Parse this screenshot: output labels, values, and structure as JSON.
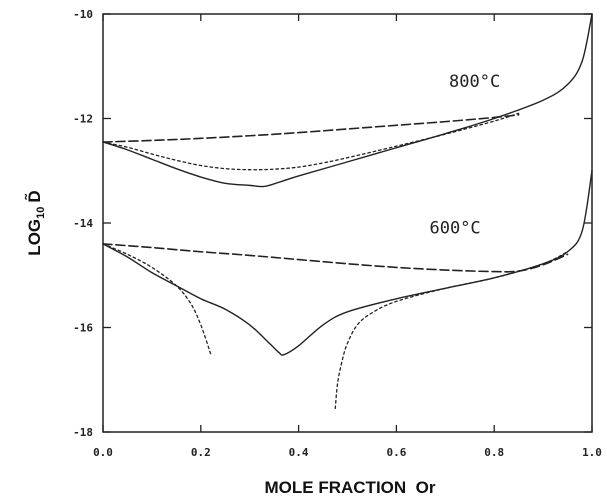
{
  "chart_data": {
    "type": "line",
    "title": "",
    "xlabel": "MOLE FRACTION  Or",
    "ylabel": "LOG",
    "ylabel_subscript": "10",
    "ylabel_symbol": "D̃",
    "xlim": [
      0.0,
      1.0
    ],
    "ylim": [
      -18,
      -10
    ],
    "xticks": [
      0.0,
      0.2,
      0.4,
      0.6,
      0.8,
      1.0
    ],
    "xtick_labels": [
      "0.0",
      "0.2",
      "0.4",
      "0.6",
      "0.8",
      "1.0"
    ],
    "yticks": [
      -18,
      -16,
      -14,
      -12,
      -10
    ],
    "ytick_labels": [
      "-18",
      "-16",
      "-14",
      "-12",
      "-10"
    ],
    "grid": false,
    "annotations": [
      {
        "text": "800°C",
        "x": 0.76,
        "y": -11.4
      },
      {
        "text": "600°C",
        "x": 0.72,
        "y": -14.2
      }
    ],
    "series": [
      {
        "style": "solid",
        "x": [
          0.0,
          0.05,
          0.1,
          0.15,
          0.2,
          0.25,
          0.3,
          0.33,
          0.36,
          0.4,
          0.5,
          0.6,
          0.7,
          0.8,
          0.9,
          0.95,
          0.98,
          1.0
        ],
        "y": [
          -12.45,
          -12.6,
          -12.78,
          -12.96,
          -13.12,
          -13.24,
          -13.28,
          -13.3,
          -13.22,
          -13.1,
          -12.83,
          -12.56,
          -12.29,
          -12.0,
          -11.65,
          -11.35,
          -10.9,
          -10.0
        ]
      },
      {
        "style": "dotted",
        "x": [
          0.0,
          0.05,
          0.1,
          0.15,
          0.2,
          0.25,
          0.3,
          0.35,
          0.4,
          0.45,
          0.5,
          0.6,
          0.7,
          0.8,
          0.85
        ],
        "y": [
          -12.45,
          -12.55,
          -12.68,
          -12.8,
          -12.9,
          -12.96,
          -12.98,
          -12.97,
          -12.93,
          -12.85,
          -12.75,
          -12.53,
          -12.3,
          -12.05,
          -11.9
        ]
      },
      {
        "style": "dashed",
        "x": [
          0.0,
          0.1,
          0.2,
          0.3,
          0.4,
          0.5,
          0.6,
          0.7,
          0.8,
          0.85
        ],
        "y": [
          -12.45,
          -12.42,
          -12.38,
          -12.33,
          -12.27,
          -12.2,
          -12.13,
          -12.06,
          -11.98,
          -11.93
        ]
      },
      {
        "style": "solid",
        "x": [
          0.0,
          0.05,
          0.1,
          0.15,
          0.2,
          0.25,
          0.3,
          0.34,
          0.36,
          0.37,
          0.4,
          0.45,
          0.5,
          0.6,
          0.7,
          0.8,
          0.9,
          0.95,
          0.98,
          1.0
        ],
        "y": [
          -14.4,
          -14.65,
          -14.95,
          -15.2,
          -15.45,
          -15.65,
          -15.95,
          -16.3,
          -16.48,
          -16.52,
          -16.35,
          -15.95,
          -15.7,
          -15.45,
          -15.25,
          -15.05,
          -14.78,
          -14.55,
          -14.15,
          -13.0
        ]
      },
      {
        "style": "dotted",
        "x": [
          0.0,
          0.05,
          0.1,
          0.15,
          0.18,
          0.2,
          0.22
        ],
        "y": [
          -14.4,
          -14.6,
          -14.85,
          -15.2,
          -15.55,
          -15.95,
          -16.5
        ]
      },
      {
        "style": "dotted",
        "x": [
          0.475,
          0.48,
          0.49,
          0.5,
          0.52,
          0.55,
          0.6,
          0.7,
          0.8,
          0.9,
          0.95
        ],
        "y": [
          -17.55,
          -17.05,
          -16.6,
          -16.3,
          -15.95,
          -15.72,
          -15.5,
          -15.25,
          -15.05,
          -14.78,
          -14.55
        ]
      },
      {
        "style": "dashed",
        "x": [
          0.0,
          0.1,
          0.2,
          0.3,
          0.4,
          0.5,
          0.6,
          0.7,
          0.8,
          0.85,
          0.9,
          0.95
        ],
        "y": [
          -14.4,
          -14.47,
          -14.55,
          -14.62,
          -14.7,
          -14.78,
          -14.85,
          -14.9,
          -14.93,
          -14.92,
          -14.8,
          -14.6
        ]
      }
    ]
  }
}
